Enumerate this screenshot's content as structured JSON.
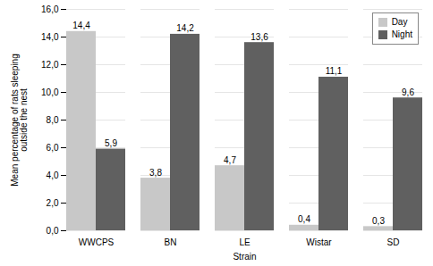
{
  "chart_data": {
    "type": "bar",
    "categories": [
      "WWCPS",
      "BN",
      "LE",
      "Wistar",
      "SD"
    ],
    "series": [
      {
        "name": "Day",
        "color": "#c8c8c8",
        "values": [
          14.4,
          3.8,
          4.7,
          0.4,
          0.3
        ],
        "value_labels": [
          "14,4",
          "3,8",
          "4,7",
          "0,4",
          "0,3"
        ]
      },
      {
        "name": "Night",
        "color": "#606060",
        "values": [
          5.9,
          14.2,
          13.6,
          11.1,
          9.6
        ],
        "value_labels": [
          "5,9",
          "14,2",
          "13,6",
          "11,1",
          "9,6"
        ]
      }
    ],
    "xlabel": "Strain",
    "ylabel": "Mean percentage of rats sleeping\noutside the nest",
    "ylim": [
      0,
      16.0
    ],
    "yticks": [
      {
        "value": 0,
        "label": "0,0"
      },
      {
        "value": 2,
        "label": "2,0"
      },
      {
        "value": 4,
        "label": "4,0"
      },
      {
        "value": 6,
        "label": "6,0"
      },
      {
        "value": 8,
        "label": "8,0"
      },
      {
        "value": 10,
        "label": "10,0"
      },
      {
        "value": 12,
        "label": "12,0"
      },
      {
        "value": 14,
        "label": "14,0"
      },
      {
        "value": 16,
        "label": "16,0"
      }
    ],
    "grid": true,
    "legend": "upper right",
    "data_labels": true
  }
}
